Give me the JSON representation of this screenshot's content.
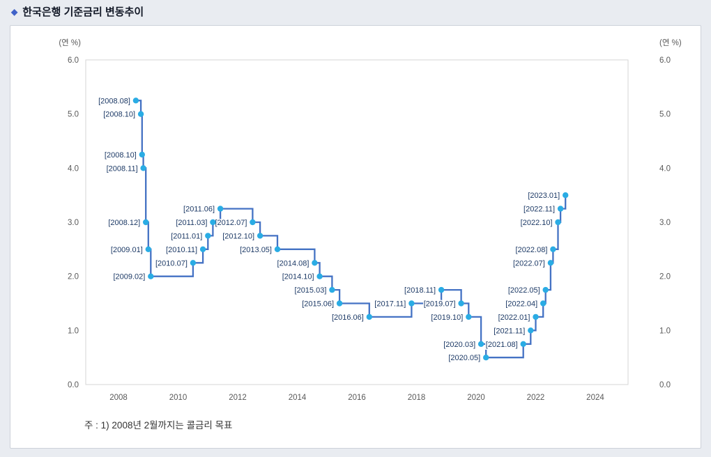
{
  "header": {
    "bullet": "◆",
    "title": "한국은행 기준금리 변동추이"
  },
  "footnote": {
    "text": "주 : 1) 2008년 2월까지는 콜금리 목표"
  },
  "chart_data": {
    "type": "line",
    "step": "after",
    "title": "한국은행 기준금리 변동추이",
    "unit_label_left": "(연 %)",
    "unit_label_right": "(연 %)",
    "ylabel": "",
    "xlabel": "",
    "ylim": [
      0,
      6
    ],
    "ytick_labels": [
      "0.0",
      "1.0",
      "2.0",
      "3.0",
      "4.0",
      "5.0",
      "6.0"
    ],
    "xlim": [
      2006.9,
      2025.1
    ],
    "xticks": [
      2008,
      2010,
      2012,
      2014,
      2016,
      2018,
      2020,
      2022,
      2024
    ],
    "grid": "off",
    "legend": "none",
    "colors": {
      "line": "#4472c4",
      "point": "#2aace4",
      "point_label": "#1d3a66",
      "axis_text": "#595959",
      "plot_border": "#d6d6d6"
    },
    "points": [
      {
        "label": "[2008.08]",
        "date": 2008.583,
        "value": 5.25
      },
      {
        "label": "[2008.10]",
        "date": 2008.75,
        "value": 5.0
      },
      {
        "label": "[2008.10]",
        "date": 2008.79,
        "value": 4.25
      },
      {
        "label": "[2008.11]",
        "date": 2008.833,
        "value": 4.0
      },
      {
        "label": "[2008.12]",
        "date": 2008.917,
        "value": 3.0
      },
      {
        "label": "[2009.01]",
        "date": 2009.0,
        "value": 2.5
      },
      {
        "label": "[2009.02]",
        "date": 2009.083,
        "value": 2.0
      },
      {
        "label": "[2010.07]",
        "date": 2010.5,
        "value": 2.25
      },
      {
        "label": "[2010.11]",
        "date": 2010.833,
        "value": 2.5
      },
      {
        "label": "[2011.01]",
        "date": 2011.0,
        "value": 2.75
      },
      {
        "label": "[2011.03]",
        "date": 2011.167,
        "value": 3.0
      },
      {
        "label": "[2011.06]",
        "date": 2011.417,
        "value": 3.25
      },
      {
        "label": "[2012.07]",
        "date": 2012.5,
        "value": 3.0
      },
      {
        "label": "[2012.10]",
        "date": 2012.75,
        "value": 2.75
      },
      {
        "label": "[2013.05]",
        "date": 2013.333,
        "value": 2.5
      },
      {
        "label": "[2014.08]",
        "date": 2014.583,
        "value": 2.25
      },
      {
        "label": "[2014.10]",
        "date": 2014.75,
        "value": 2.0
      },
      {
        "label": "[2015.03]",
        "date": 2015.167,
        "value": 1.75
      },
      {
        "label": "[2015.06]",
        "date": 2015.417,
        "value": 1.5
      },
      {
        "label": "[2016.06]",
        "date": 2016.417,
        "value": 1.25
      },
      {
        "label": "[2017.11]",
        "date": 2017.833,
        "value": 1.5
      },
      {
        "label": "[2018.11]",
        "date": 2018.833,
        "value": 1.75
      },
      {
        "label": "[2019.07]",
        "date": 2019.5,
        "value": 1.5
      },
      {
        "label": "[2019.10]",
        "date": 2019.75,
        "value": 1.25
      },
      {
        "label": "[2020.03]",
        "date": 2020.167,
        "value": 0.75
      },
      {
        "label": "[2020.05]",
        "date": 2020.333,
        "value": 0.5
      },
      {
        "label": "[2021.08]",
        "date": 2021.583,
        "value": 0.75
      },
      {
        "label": "[2021.11]",
        "date": 2021.833,
        "value": 1.0
      },
      {
        "label": "[2022.01]",
        "date": 2022.0,
        "value": 1.25
      },
      {
        "label": "[2022.04]",
        "date": 2022.25,
        "value": 1.5
      },
      {
        "label": "[2022.05]",
        "date": 2022.333,
        "value": 1.75
      },
      {
        "label": "[2022.07]",
        "date": 2022.5,
        "value": 2.25
      },
      {
        "label": "[2022.08]",
        "date": 2022.583,
        "value": 2.5
      },
      {
        "label": "[2022.10]",
        "date": 2022.75,
        "value": 3.0
      },
      {
        "label": "[2022.11]",
        "date": 2022.833,
        "value": 3.25
      },
      {
        "label": "[2023.01]",
        "date": 2023.0,
        "value": 3.5
      }
    ]
  }
}
